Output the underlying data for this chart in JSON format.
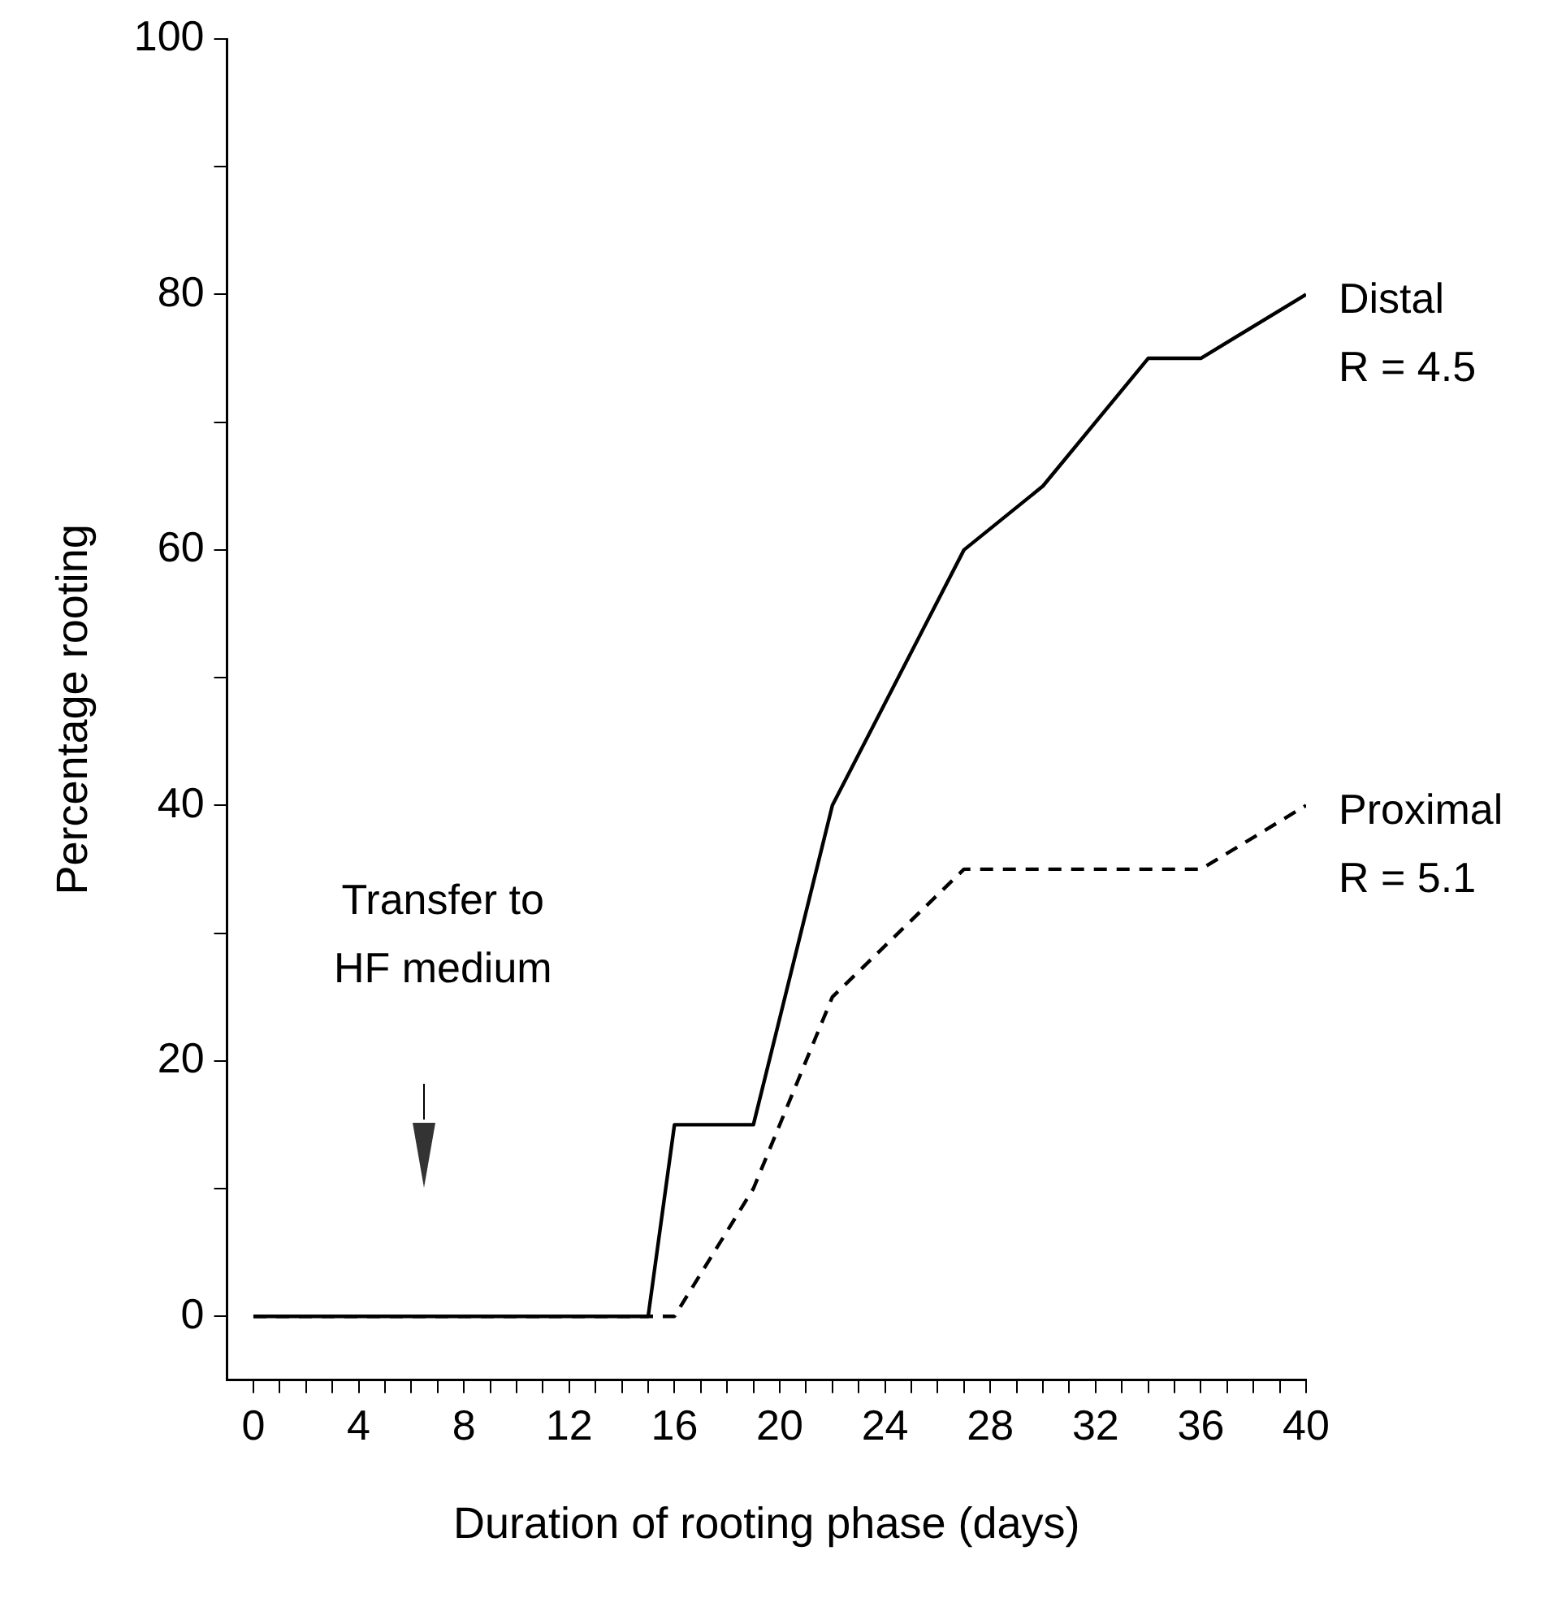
{
  "chart_data": {
    "type": "line",
    "xlabel": "Duration of rooting phase (days)",
    "ylabel": "Percentage rooting",
    "xlim": [
      -1,
      40
    ],
    "ylim": [
      -5,
      100
    ],
    "xticks": [
      0,
      {
        "value": 1,
        "label": null
      },
      {
        "value": 2,
        "label": null
      },
      {
        "value": 3,
        "label": null
      },
      4,
      {
        "value": 5,
        "label": null
      },
      {
        "value": 6,
        "label": null
      },
      {
        "value": 7,
        "label": null
      },
      8,
      {
        "value": 9,
        "label": null
      },
      {
        "value": 10,
        "label": null
      },
      {
        "value": 11,
        "label": null
      },
      12,
      {
        "value": 13,
        "label": null
      },
      {
        "value": 14,
        "label": null
      },
      {
        "value": 15,
        "label": null
      },
      16,
      {
        "value": 17,
        "label": null
      },
      {
        "value": 18,
        "label": null
      },
      {
        "value": 19,
        "label": null
      },
      20,
      {
        "value": 21,
        "label": null
      },
      {
        "value": 22,
        "label": null
      },
      {
        "value": 23,
        "label": null
      },
      24,
      {
        "value": 25,
        "label": null
      },
      {
        "value": 26,
        "label": null
      },
      {
        "value": 27,
        "label": null
      },
      28,
      {
        "value": 29,
        "label": null
      },
      {
        "value": 30,
        "label": null
      },
      {
        "value": 31,
        "label": null
      },
      32,
      {
        "value": 33,
        "label": null
      },
      {
        "value": 34,
        "label": null
      },
      {
        "value": 35,
        "label": null
      },
      36,
      {
        "value": 37,
        "label": null
      },
      {
        "value": 38,
        "label": null
      },
      {
        "value": 39,
        "label": null
      },
      40
    ],
    "yticks": [
      0,
      {
        "value": 10,
        "label": null
      },
      20,
      {
        "value": 30,
        "label": null
      },
      40,
      {
        "value": 50,
        "label": null
      },
      60,
      {
        "value": 70,
        "label": null
      },
      80,
      {
        "value": 90,
        "label": null
      },
      100
    ],
    "grid": false,
    "legend": false,
    "marker": "none",
    "series": [
      {
        "name": "Distal",
        "color": "#000000",
        "line_style": "solid",
        "x": [
          0,
          15,
          16,
          19,
          22,
          27,
          30,
          34,
          36,
          40
        ],
        "values": [
          0,
          0,
          15,
          15,
          40,
          60,
          65,
          75,
          75,
          80
        ]
      },
      {
        "name": "Proximal",
        "color": "#000000",
        "line_style": "dashed",
        "x": [
          0,
          16,
          19,
          22,
          27,
          36,
          40
        ],
        "values": [
          0,
          0,
          10,
          25,
          35,
          35,
          40
        ]
      }
    ],
    "annotations": [
      "Transfer to HF medium",
      {
        "text": "R = 4.5",
        "x": 40,
        "y": 80
      },
      {
        "text": "R = 5.1",
        "x": 40,
        "y": 40
      }
    ]
  }
}
